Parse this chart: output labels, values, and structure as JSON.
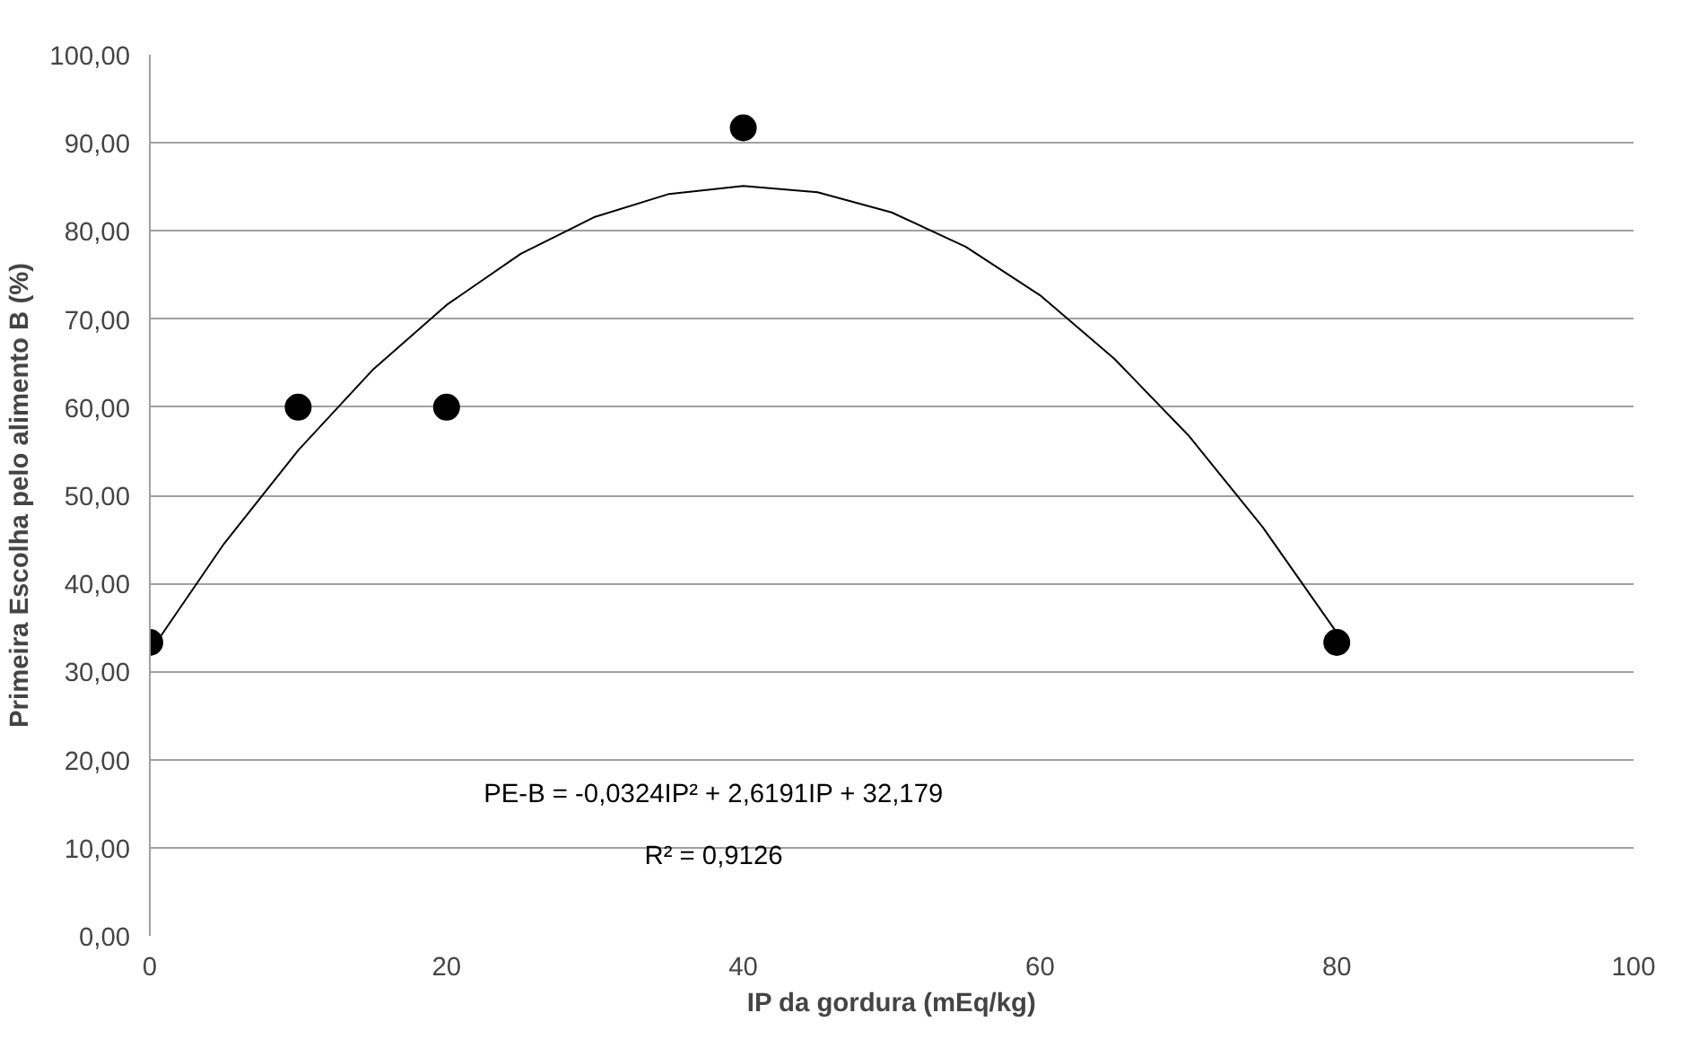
{
  "chart_data": {
    "type": "scatter",
    "xlabel": "IP da gordura (mEq/kg)",
    "ylabel": "Primeira Escolha pelo alimento B (%)",
    "x": [
      0,
      10,
      20,
      40,
      80
    ],
    "series": [
      {
        "color": "#000000",
        "marker": "circle",
        "values": [
          33.3,
          60.0,
          60.0,
          91.7,
          33.3
        ]
      },
      {
        "type": "line",
        "color": "#000000",
        "marker": "none",
        "x": [
          0,
          5,
          10,
          15,
          20,
          25,
          30,
          35,
          40,
          45,
          50,
          55,
          60,
          65,
          70,
          75,
          80
        ],
        "values": [
          32.2,
          44.5,
          55.1,
          64.2,
          71.6,
          77.4,
          81.6,
          84.2,
          85.1,
          84.4,
          82.1,
          78.2,
          72.7,
          65.5,
          56.8,
          46.4,
          34.4
        ]
      }
    ],
    "xlim": [
      0,
      100
    ],
    "xticks": [
      0,
      20,
      40,
      60,
      80,
      100
    ],
    "ylim": [
      0,
      100
    ],
    "yticks": [
      {
        "value": 0,
        "label": "0,00"
      },
      {
        "value": 10,
        "label": "10,00"
      },
      {
        "value": 20,
        "label": "20,00"
      },
      {
        "value": 30,
        "label": "30,00"
      },
      {
        "value": 40,
        "label": "40,00"
      },
      {
        "value": 50,
        "label": "50,00"
      },
      {
        "value": 60,
        "label": "60,00"
      },
      {
        "value": 70,
        "label": "70,00"
      },
      {
        "value": 80,
        "label": "80,00"
      },
      {
        "value": 90,
        "label": "90,00"
      },
      {
        "value": 100,
        "label": "100,00"
      }
    ],
    "grid": "y",
    "annotations": [
      "PE-B = -0,0324IP² + 2,6191IP + 32,179",
      "R² = 0,9126"
    ]
  }
}
